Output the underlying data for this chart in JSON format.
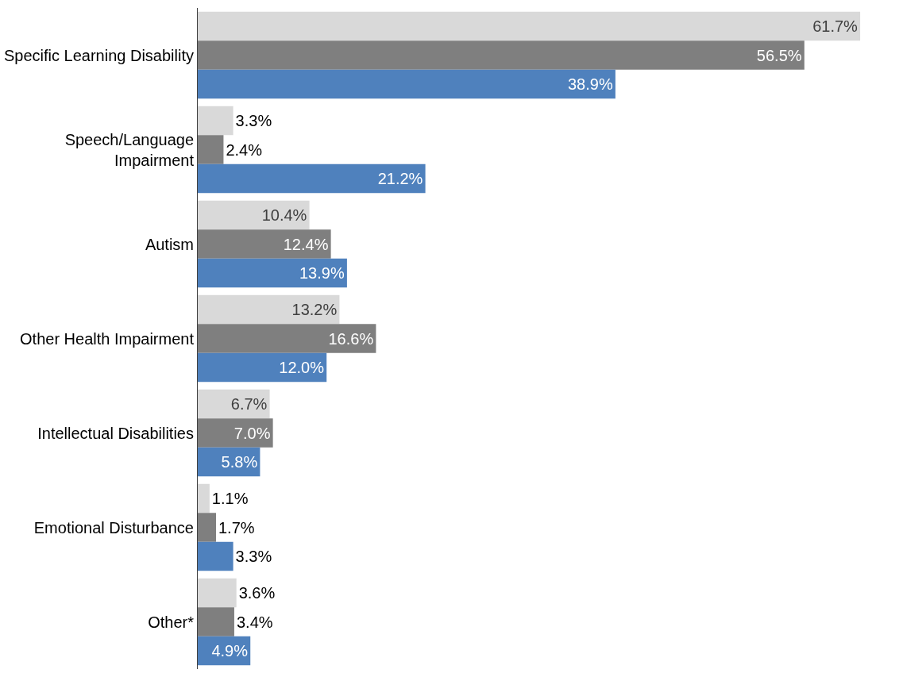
{
  "chart_data": {
    "type": "bar",
    "orientation": "horizontal",
    "tick_labels": "y",
    "categories": [
      "Specific Learning Disability",
      "Speech/Language Impairment",
      "Autism",
      "Other Health Impairment",
      "Intellectual Disabilities",
      "Emotional Disturbance",
      "Other*"
    ],
    "series": [
      {
        "color": "#d9d9d9",
        "values": [
          61.7,
          3.3,
          10.4,
          13.2,
          6.7,
          1.1,
          3.6
        ],
        "value_labels": [
          "61.7%",
          "3.3%",
          "10.4%",
          "13.2%",
          "6.7%",
          "1.1%",
          "3.6%"
        ]
      },
      {
        "color": "#7f7f7f",
        "values": [
          56.5,
          2.4,
          12.4,
          16.6,
          7.0,
          1.7,
          3.4
        ],
        "value_labels": [
          "56.5%",
          "2.4%",
          "12.4%",
          "16.6%",
          "7.0%",
          "1.7%",
          "3.4%"
        ]
      },
      {
        "color": "#4f81bd",
        "values": [
          38.9,
          21.2,
          13.9,
          12.0,
          5.8,
          3.3,
          4.9
        ],
        "value_labels": [
          "38.9%",
          "21.2%",
          "13.9%",
          "12.0%",
          "5.8%",
          "3.3%",
          "4.9%"
        ]
      }
    ]
  }
}
